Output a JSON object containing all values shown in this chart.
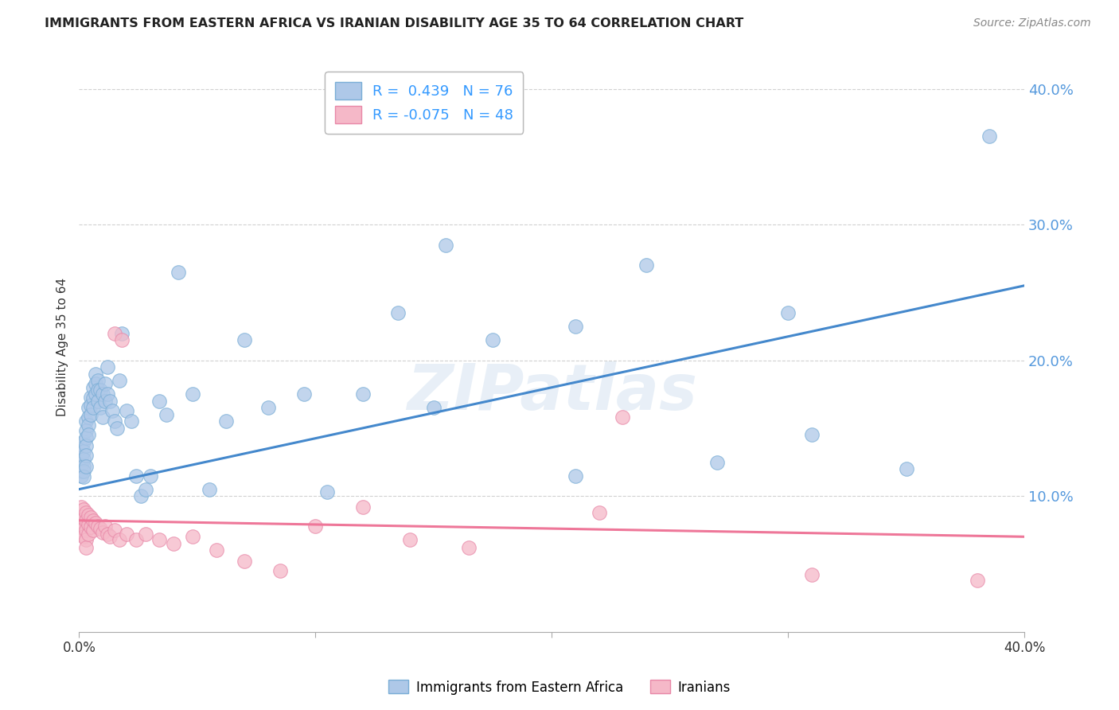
{
  "title": "IMMIGRANTS FROM EASTERN AFRICA VS IRANIAN DISABILITY AGE 35 TO 64 CORRELATION CHART",
  "source": "Source: ZipAtlas.com",
  "ylabel": "Disability Age 35 to 64",
  "xlim": [
    0.0,
    0.4
  ],
  "ylim": [
    0.0,
    0.42
  ],
  "xticks": [
    0.0,
    0.1,
    0.2,
    0.3,
    0.4
  ],
  "xtick_labels": [
    "0.0%",
    "",
    "",
    "",
    "40.0%"
  ],
  "yticks": [
    0.1,
    0.2,
    0.3,
    0.4
  ],
  "ytick_labels": [
    "10.0%",
    "20.0%",
    "30.0%",
    "40.0%"
  ],
  "blue_fill": "#aec8e8",
  "blue_edge": "#7aaed6",
  "pink_fill": "#f5b8c8",
  "pink_edge": "#e888a8",
  "blue_line_color": "#4488cc",
  "pink_line_color": "#ee7799",
  "R_blue": 0.439,
  "N_blue": 76,
  "R_pink": -0.075,
  "N_pink": 48,
  "legend_label_blue": "Immigrants from Eastern Africa",
  "legend_label_pink": "Iranians",
  "blue_line_x0": 0.0,
  "blue_line_y0": 0.105,
  "blue_line_x1": 0.4,
  "blue_line_y1": 0.255,
  "pink_line_x0": 0.0,
  "pink_line_y0": 0.082,
  "pink_line_x1": 0.4,
  "pink_line_y1": 0.07,
  "blue_scatter_x": [
    0.001,
    0.001,
    0.001,
    0.001,
    0.001,
    0.002,
    0.002,
    0.002,
    0.002,
    0.002,
    0.002,
    0.003,
    0.003,
    0.003,
    0.003,
    0.003,
    0.003,
    0.004,
    0.004,
    0.004,
    0.004,
    0.005,
    0.005,
    0.005,
    0.006,
    0.006,
    0.006,
    0.007,
    0.007,
    0.007,
    0.008,
    0.008,
    0.008,
    0.009,
    0.009,
    0.01,
    0.01,
    0.011,
    0.011,
    0.012,
    0.012,
    0.013,
    0.014,
    0.015,
    0.016,
    0.017,
    0.018,
    0.02,
    0.022,
    0.024,
    0.026,
    0.028,
    0.03,
    0.034,
    0.037,
    0.042,
    0.048,
    0.055,
    0.062,
    0.07,
    0.08,
    0.095,
    0.105,
    0.12,
    0.135,
    0.15,
    0.175,
    0.21,
    0.24,
    0.27,
    0.31,
    0.35,
    0.3,
    0.155,
    0.21,
    0.385
  ],
  "blue_scatter_y": [
    0.135,
    0.128,
    0.122,
    0.118,
    0.115,
    0.14,
    0.133,
    0.127,
    0.122,
    0.118,
    0.114,
    0.155,
    0.148,
    0.143,
    0.137,
    0.13,
    0.122,
    0.165,
    0.158,
    0.152,
    0.145,
    0.173,
    0.167,
    0.16,
    0.18,
    0.172,
    0.165,
    0.19,
    0.183,
    0.175,
    0.185,
    0.178,
    0.17,
    0.178,
    0.165,
    0.175,
    0.158,
    0.183,
    0.17,
    0.195,
    0.175,
    0.17,
    0.163,
    0.155,
    0.15,
    0.185,
    0.22,
    0.163,
    0.155,
    0.115,
    0.1,
    0.105,
    0.115,
    0.17,
    0.16,
    0.265,
    0.175,
    0.105,
    0.155,
    0.215,
    0.165,
    0.175,
    0.103,
    0.175,
    0.235,
    0.165,
    0.215,
    0.225,
    0.27,
    0.125,
    0.145,
    0.12,
    0.235,
    0.285,
    0.115,
    0.365
  ],
  "pink_scatter_x": [
    0.001,
    0.001,
    0.001,
    0.001,
    0.002,
    0.002,
    0.002,
    0.002,
    0.003,
    0.003,
    0.003,
    0.003,
    0.003,
    0.004,
    0.004,
    0.004,
    0.005,
    0.005,
    0.006,
    0.006,
    0.007,
    0.008,
    0.009,
    0.01,
    0.011,
    0.012,
    0.013,
    0.015,
    0.017,
    0.02,
    0.024,
    0.028,
    0.034,
    0.04,
    0.048,
    0.058,
    0.07,
    0.085,
    0.1,
    0.12,
    0.015,
    0.018,
    0.14,
    0.165,
    0.22,
    0.31,
    0.38,
    0.23
  ],
  "pink_scatter_y": [
    0.092,
    0.085,
    0.078,
    0.072,
    0.09,
    0.083,
    0.076,
    0.07,
    0.088,
    0.082,
    0.075,
    0.068,
    0.062,
    0.086,
    0.079,
    0.072,
    0.084,
    0.077,
    0.082,
    0.075,
    0.08,
    0.078,
    0.076,
    0.073,
    0.078,
    0.072,
    0.07,
    0.075,
    0.068,
    0.072,
    0.068,
    0.072,
    0.068,
    0.065,
    0.07,
    0.06,
    0.052,
    0.045,
    0.078,
    0.092,
    0.22,
    0.215,
    0.068,
    0.062,
    0.088,
    0.042,
    0.038,
    0.158
  ],
  "watermark": "ZIPatlas",
  "grid_color": "#cccccc",
  "bg_color": "#ffffff"
}
